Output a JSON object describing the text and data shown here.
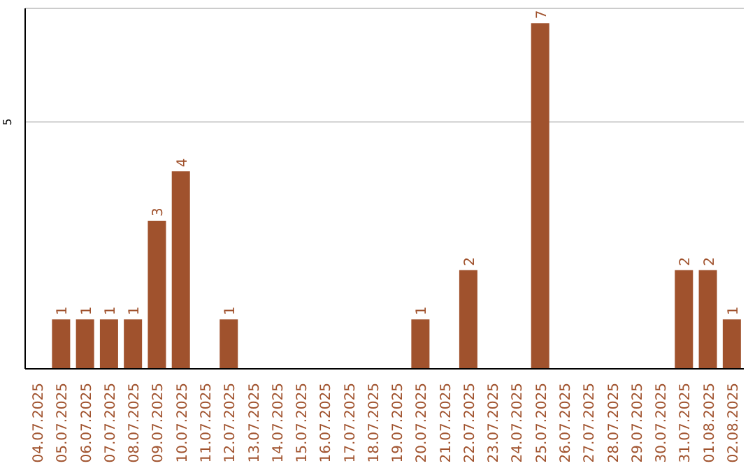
{
  "chart_data": {
    "type": "bar",
    "categories": [
      "04.07.2025",
      "05.07.2025",
      "06.07.2025",
      "07.07.2025",
      "08.07.2025",
      "09.07.2025",
      "10.07.2025",
      "11.07.2025",
      "12.07.2025",
      "13.07.2025",
      "14.07.2025",
      "15.07.2025",
      "16.07.2025",
      "17.07.2025",
      "18.07.2025",
      "19.07.2025",
      "20.07.2025",
      "21.07.2025",
      "22.07.2025",
      "23.07.2025",
      "24.07.2025",
      "25.07.2025",
      "26.07.2025",
      "27.07.2025",
      "28.07.2025",
      "29.07.2025",
      "30.07.2025",
      "31.07.2025",
      "01.08.2025",
      "02.08.2025"
    ],
    "values": [
      0,
      1,
      1,
      1,
      1,
      3,
      4,
      0,
      1,
      0,
      0,
      0,
      0,
      0,
      0,
      0,
      1,
      0,
      2,
      0,
      0,
      7,
      0,
      0,
      0,
      0,
      0,
      2,
      2,
      1
    ],
    "value_labels": [
      null,
      "1",
      "1",
      "1",
      "1",
      "3",
      "4",
      null,
      "1",
      null,
      null,
      null,
      null,
      null,
      null,
      null,
      "1",
      null,
      "2",
      null,
      null,
      "7",
      null,
      null,
      null,
      null,
      null,
      "2",
      "2",
      "1"
    ],
    "color": "#a0522d",
    "ylim": [
      0,
      7.3
    ],
    "yticks": [
      5
    ],
    "grid": "y"
  }
}
